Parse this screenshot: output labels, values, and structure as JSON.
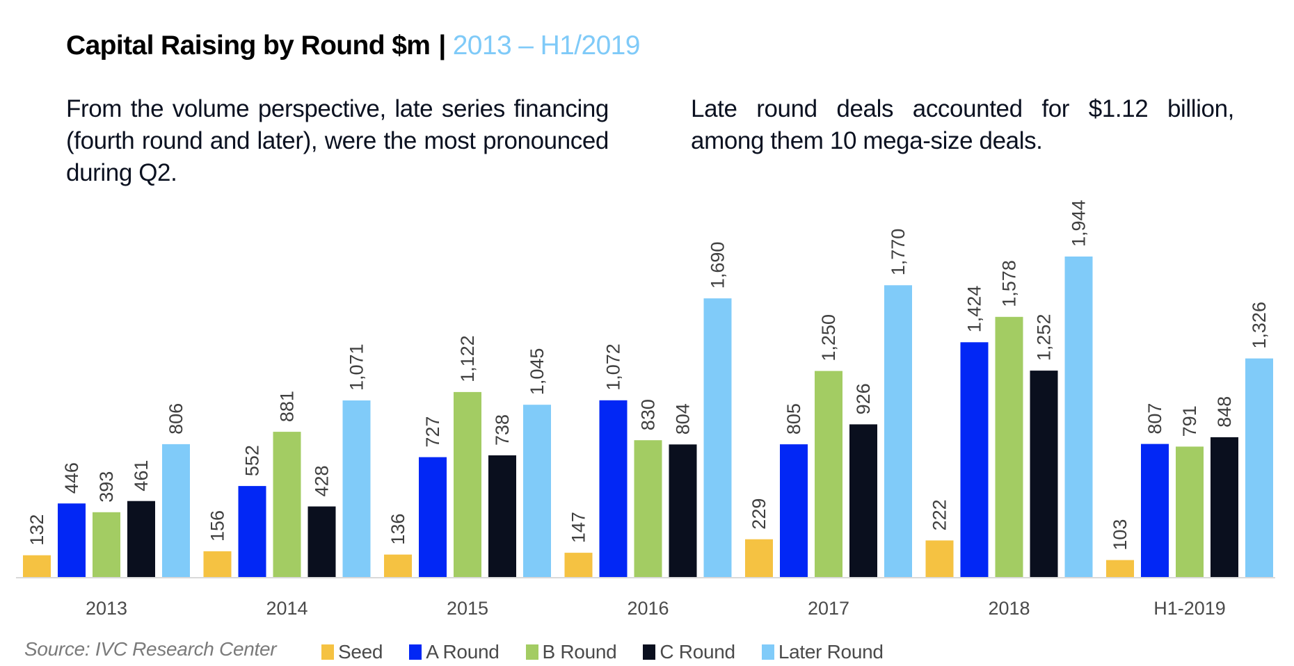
{
  "header": {
    "title_main": "Capital Raising by Round $m",
    "title_separator": "|",
    "title_range": "2013 – H1/2019"
  },
  "commentary": {
    "left": "From the volume perspective, late series financing (fourth round and later), were the most pronounced during Q2.",
    "right": "Late round deals accounted for $1.12 billion, among them 10 mega-size deals."
  },
  "source": "Source: IVC Research Center",
  "colors": {
    "seed": "#f5c242",
    "a_round": "#0227f5",
    "b_round": "#a3cc63",
    "c_round": "#0a0f1e",
    "later_round": "#80cbf9",
    "title_accent": "#7fcaf8",
    "axis": "#d9d9d9"
  },
  "chart_data": {
    "type": "bar",
    "title": "Capital Raising by Round $m | 2013 – H1/2019",
    "xlabel": "",
    "ylabel": "$m",
    "categories": [
      "2013",
      "2014",
      "2015",
      "2016",
      "2017",
      "2018",
      "H1-2019"
    ],
    "series": [
      {
        "name": "Seed",
        "key": "seed",
        "values": [
          132,
          156,
          136,
          147,
          229,
          222,
          103
        ]
      },
      {
        "name": "A Round",
        "key": "a_round",
        "values": [
          446,
          552,
          727,
          1072,
          805,
          1424,
          807
        ]
      },
      {
        "name": "B Round",
        "key": "b_round",
        "values": [
          393,
          881,
          1122,
          830,
          1250,
          1578,
          791
        ]
      },
      {
        "name": "C Round",
        "key": "c_round",
        "values": [
          461,
          428,
          738,
          804,
          926,
          1252,
          848
        ]
      },
      {
        "name": "Later Round",
        "key": "later_round",
        "values": [
          806,
          1071,
          1045,
          1690,
          1770,
          1944,
          1326
        ]
      }
    ],
    "data_labels": [
      [
        "132",
        "156",
        "136",
        "147",
        "229",
        "222",
        "103"
      ],
      [
        "446",
        "552",
        "727",
        "1,072",
        "805",
        "1,424",
        "807"
      ],
      [
        "393",
        "881",
        "1,122",
        "830",
        "1,250",
        "1,578",
        "791"
      ],
      [
        "461",
        "428",
        "738",
        "804",
        "926",
        "1,252",
        "848"
      ],
      [
        "806",
        "1,071",
        "1,045",
        "1,690",
        "1,770",
        "1,944",
        "1,326"
      ]
    ],
    "ylim": [
      0,
      1944
    ],
    "grid": false,
    "y_axis_visible": false,
    "data_label_orientation": "vertical",
    "legend_position": "bottom"
  }
}
